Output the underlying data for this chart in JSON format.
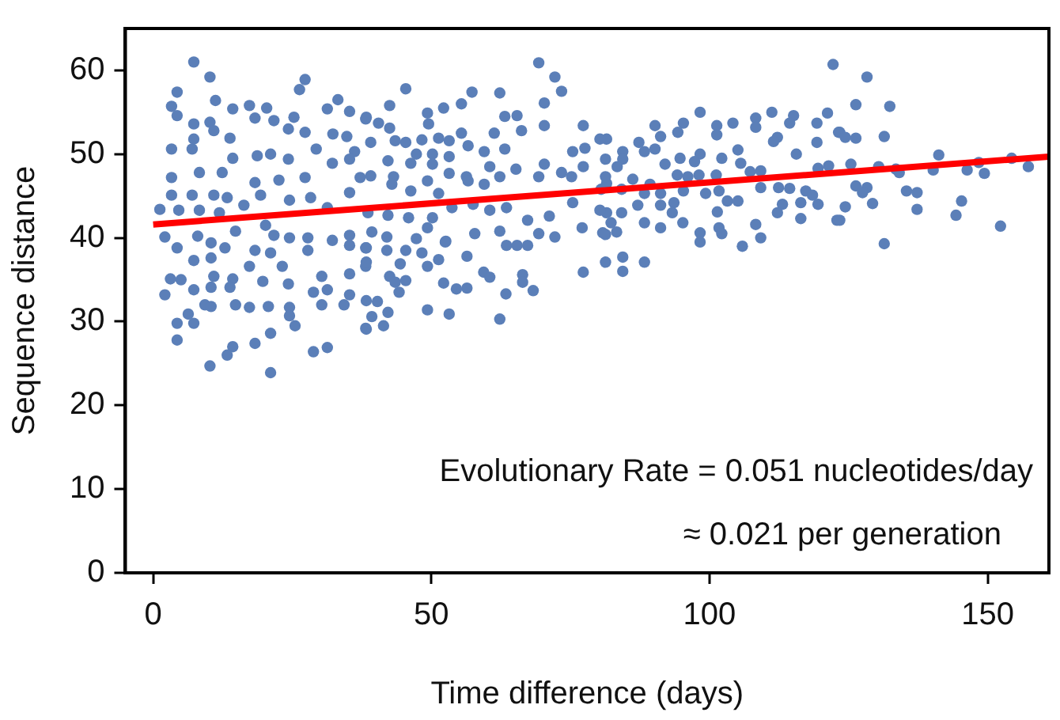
{
  "chart_data": {
    "type": "scatter",
    "xlabel": "Time difference (days)",
    "ylabel": "Sequence distance",
    "xlim": [
      -5,
      161
    ],
    "ylim": [
      0,
      65
    ],
    "xticks": [
      0,
      50,
      100,
      150
    ],
    "yticks": [
      0,
      10,
      20,
      30,
      40,
      50,
      60
    ],
    "grid": false,
    "legend": false,
    "marker": "circle",
    "annotations": [
      "Evolutionary Rate = 0.051 nucleotides/day",
      "≈ 0.021 per generation"
    ],
    "series": [
      {
        "color": "#5b7fb8",
        "x": [
          7.3,
          10.2,
          4.3,
          3.3,
          4.3,
          11.2,
          14.3,
          17.3,
          20.4,
          21.7,
          18.3,
          7.3,
          10.2,
          10.9,
          13.8,
          26.3,
          27.3,
          25.3,
          24.3,
          27.3,
          31.3,
          33.2,
          35.3,
          38.2,
          32.3,
          34.8,
          3.3,
          7.0,
          7.3,
          29.3,
          36.2,
          18.7,
          21.1,
          24.3,
          14.3,
          8.3,
          3.3,
          12.4,
          18.3,
          22.6,
          27.3,
          32.2,
          35.3,
          37.2,
          3.3,
          7.0,
          10.9,
          13.3,
          16.3,
          19.3,
          24.5,
          28.3,
          31.3,
          35.3,
          1.2,
          4.6,
          8.3,
          11.9,
          14.8,
          8.0,
          2.1,
          20.2,
          21.7,
          24.5,
          27.8,
          32.2,
          35.3,
          10.4,
          12.9,
          4.3,
          7.3,
          10.4,
          18.3,
          21.1,
          17.3,
          23.2,
          27.8,
          35.3,
          38.2,
          3.1,
          5.0,
          10.9,
          14.3,
          19.7,
          24.3,
          30.3,
          35.3,
          38.2,
          2.1,
          7.3,
          10.4,
          13.8,
          28.8,
          31.3,
          35.3,
          9.3,
          10.4,
          14.8,
          17.3,
          20.7,
          24.5,
          30.3,
          34.3,
          38.2,
          6.3,
          4.3,
          7.3,
          24.5,
          25.5,
          4.3,
          21.1,
          18.3,
          14.3,
          13.3,
          28.8,
          31.3,
          10.2,
          21.1,
          69.3,
          72.2,
          73.4,
          45.4,
          57.3,
          62.3,
          42.5,
          52.2,
          55.4,
          49.3,
          63.2,
          65.4,
          70.3,
          38.3,
          40.5,
          42.5,
          49.5,
          66.2,
          70.3,
          77.3,
          61.3,
          55.4,
          48.3,
          51.3,
          53.2,
          39.1,
          43.5,
          45.4,
          56.6,
          59.5,
          63.2,
          47.3,
          50.2,
          53.2,
          75.4,
          77.6,
          81.5,
          42.2,
          46.3,
          50.2,
          60.5,
          65.2,
          70.3,
          77.3,
          62.3,
          56.3,
          53.2,
          49.3,
          39.1,
          43.2,
          69.3,
          73.4,
          75.2,
          81.5,
          42.9,
          46.3,
          51.3,
          59.5,
          56.6,
          71.2,
          67.3,
          63.5,
          60.5,
          57.5,
          53.7,
          50.2,
          45.9,
          42.2,
          38.6,
          75.4,
          81.5,
          77.1,
          80.8,
          39.3,
          42.0,
          47.3,
          49.3,
          52.6,
          57.8,
          62.3,
          69.3,
          72.2,
          38.3,
          42.0,
          45.4,
          48.3,
          52.5,
          56.4,
          63.5,
          65.4,
          67.3,
          38.3,
          44.4,
          49.3,
          51.3,
          59.4,
          60.5,
          66.4,
          66.4,
          77.3,
          42.5,
          43.5,
          45.4,
          52.2,
          54.5,
          56.4,
          44.2,
          68.3,
          63.4,
          38.3,
          40.3,
          49.3,
          53.2,
          62.3,
          42.2,
          39.3,
          38.3,
          41.4,
          122.2,
          98.3,
          111.2,
          108.3,
          115.1,
          121.2,
          95.3,
          90.2,
          101.3,
          104.2,
          114.4,
          119.3,
          108.3,
          80.3,
          91.2,
          94.3,
          101.3,
          123.2,
          112.2,
          87.3,
          90.2,
          84.4,
          88.3,
          111.5,
          119.3,
          98.3,
          105.1,
          115.6,
          81.3,
          84.4,
          83.4,
          92.0,
          97.3,
          94.7,
          102.2,
          105.6,
          119.5,
          121.4,
          81.3,
          86.2,
          89.3,
          94.2,
          96.1,
          98.1,
          101.2,
          107.3,
          109.2,
          112.4,
          114.4,
          109.2,
          117.3,
          118.5,
          80.5,
          84.2,
          88.3,
          91.2,
          95.3,
          99.3,
          101.7,
          122.9,
          80.3,
          84.2,
          87.1,
          91.2,
          93.6,
          103.2,
          105.1,
          113.1,
          116.4,
          119.5,
          93.3,
          101.4,
          112.2,
          82.3,
          88.3,
          95.2,
          91.2,
          101.7,
          108.3,
          116.4,
          81.3,
          83.3,
          98.3,
          102.2,
          109.2,
          98.3,
          105.9,
          81.3,
          84.4,
          88.3,
          84.4,
          128.3,
          126.3,
          132.4,
          123.4,
          124.4,
          126.3,
          131.4,
          125.4,
          130.4,
          133.5,
          134.1,
          141.2,
          140.2,
          146.3,
          149.4,
          148.4,
          154.3,
          157.3,
          126.3,
          128.3,
          127.5,
          135.4,
          137.3,
          129.3,
          124.4,
          123.4,
          137.3,
          145.3,
          144.3,
          152.3,
          131.4
        ],
        "values": [
          61.0,
          59.2,
          57.4,
          55.7,
          54.6,
          56.4,
          55.4,
          55.8,
          55.5,
          54.0,
          54.3,
          53.6,
          53.8,
          52.8,
          51.9,
          57.7,
          58.9,
          54.4,
          53.0,
          52.6,
          55.4,
          56.5,
          55.1,
          54.2,
          52.4,
          52.1,
          50.6,
          50.6,
          51.8,
          50.6,
          50.3,
          49.8,
          50.0,
          49.4,
          49.5,
          47.8,
          47.2,
          47.8,
          46.6,
          46.9,
          47.2,
          48.9,
          49.4,
          47.2,
          45.1,
          45.1,
          45.1,
          44.8,
          43.9,
          45.1,
          44.5,
          44.8,
          43.6,
          45.4,
          43.4,
          43.3,
          43.3,
          43.0,
          40.8,
          40.2,
          40.1,
          41.5,
          40.3,
          40.0,
          40.0,
          39.7,
          40.3,
          39.4,
          38.8,
          38.8,
          37.3,
          37.6,
          38.5,
          38.2,
          36.6,
          36.6,
          38.5,
          39.1,
          38.8,
          35.1,
          35.0,
          35.4,
          35.1,
          34.8,
          34.5,
          35.4,
          35.7,
          36.6,
          33.2,
          33.8,
          34.1,
          34.1,
          33.5,
          33.8,
          33.2,
          32.0,
          31.8,
          32.0,
          31.7,
          31.8,
          31.7,
          32.0,
          32.0,
          29.2,
          30.9,
          29.8,
          29.8,
          30.7,
          29.5,
          27.8,
          28.6,
          27.4,
          27.0,
          26.0,
          26.4,
          26.9,
          24.7,
          23.9,
          60.9,
          59.2,
          57.5,
          57.8,
          57.4,
          57.3,
          55.8,
          55.5,
          56.0,
          54.9,
          54.5,
          54.6,
          56.1,
          54.4,
          53.7,
          53.1,
          53.6,
          52.8,
          53.4,
          53.4,
          52.5,
          52.5,
          51.7,
          51.9,
          51.6,
          51.4,
          51.6,
          51.4,
          51.0,
          50.3,
          50.6,
          50.0,
          50.0,
          49.7,
          50.3,
          50.7,
          51.8,
          49.2,
          48.9,
          48.8,
          48.5,
          48.2,
          48.8,
          48.5,
          47.3,
          47.3,
          47.7,
          46.8,
          47.4,
          47.3,
          47.3,
          47.8,
          47.3,
          46.5,
          46.4,
          45.6,
          45.3,
          46.4,
          46.8,
          42.6,
          42.1,
          43.6,
          43.3,
          44.0,
          43.6,
          42.4,
          42.4,
          42.7,
          43.0,
          44.2,
          43.0,
          41.2,
          40.6,
          40.7,
          40.1,
          39.9,
          41.2,
          39.6,
          40.5,
          40.8,
          40.5,
          40.1,
          38.8,
          38.5,
          38.5,
          38.2,
          39.5,
          37.8,
          39.1,
          39.1,
          39.1,
          37.1,
          36.9,
          36.6,
          37.4,
          35.9,
          35.3,
          35.6,
          34.7,
          35.9,
          35.4,
          34.7,
          34.9,
          34.6,
          33.9,
          34.0,
          33.5,
          33.7,
          33.3,
          32.5,
          32.4,
          31.4,
          30.9,
          30.3,
          31.1,
          30.6,
          29.1,
          29.5,
          60.7,
          55.0,
          55.0,
          54.3,
          54.6,
          54.9,
          53.7,
          53.4,
          53.4,
          53.7,
          53.7,
          53.7,
          53.2,
          51.8,
          52.1,
          52.6,
          52.3,
          52.6,
          52.0,
          51.4,
          50.6,
          50.3,
          50.3,
          51.5,
          51.4,
          50.0,
          50.5,
          50.0,
          49.4,
          49.4,
          48.5,
          48.8,
          49.1,
          49.5,
          49.5,
          48.9,
          48.3,
          48.6,
          47.3,
          47.0,
          46.4,
          47.5,
          47.3,
          47.5,
          47.5,
          47.9,
          48.0,
          46.0,
          45.9,
          46.0,
          45.6,
          45.1,
          45.8,
          45.8,
          45.3,
          45.3,
          45.6,
          45.3,
          45.6,
          42.1,
          43.3,
          43.0,
          43.9,
          43.9,
          44.2,
          44.4,
          44.4,
          44.0,
          44.2,
          44.0,
          43.0,
          43.1,
          43.0,
          41.8,
          41.8,
          41.8,
          41.2,
          41.2,
          41.6,
          42.3,
          40.4,
          40.7,
          40.6,
          40.5,
          40.0,
          39.5,
          39.0,
          37.1,
          37.7,
          37.1,
          36.0,
          59.2,
          55.9,
          55.7,
          52.6,
          52.0,
          51.9,
          52.1,
          48.8,
          48.5,
          48.2,
          47.8,
          49.9,
          48.1,
          48.1,
          47.7,
          49.0,
          49.5,
          48.5,
          46.2,
          46.0,
          45.4,
          45.6,
          45.4,
          44.1,
          43.7,
          42.1,
          43.4,
          44.4,
          42.7,
          41.4,
          39.3
        ]
      },
      {
        "type": "line",
        "color": "#ff0000",
        "marker": "none",
        "x": [
          0,
          161
        ],
        "values": [
          41.6,
          49.7
        ]
      }
    ]
  }
}
